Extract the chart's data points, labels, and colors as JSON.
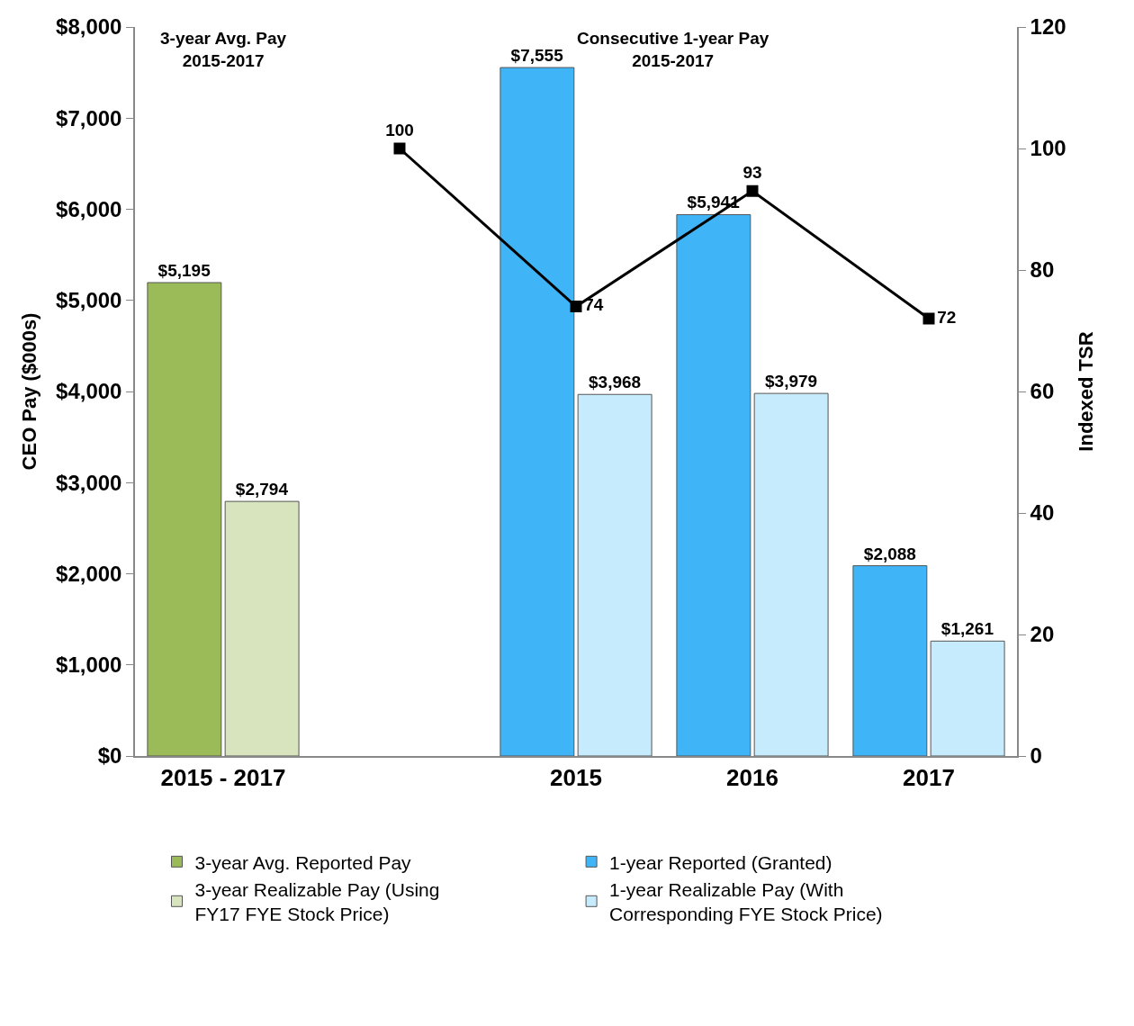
{
  "chart_data": {
    "type": "bar",
    "ylabel": "CEO Pay ($000s)",
    "y2label": "Indexed TSR",
    "categories": [
      "2015 - 2017",
      null,
      "2015",
      "2016",
      "2017"
    ],
    "series": [
      {
        "name": "3-year Avg. Reported Pay",
        "color": "#9bbb59",
        "values": [
          5195,
          null,
          null,
          null,
          null
        ],
        "value_labels": [
          "$5,195",
          null,
          null,
          null,
          null
        ]
      },
      {
        "name": "3-year Realizable Pay (Using FY17 FYE Stock Price)",
        "color": "#d7e4bd",
        "values": [
          2794,
          null,
          null,
          null,
          null
        ],
        "value_labels": [
          "$2,794",
          null,
          null,
          null,
          null
        ]
      },
      {
        "name": "1-year Reported (Granted)",
        "color": "#3fb5f7",
        "values": [
          null,
          null,
          7555,
          5941,
          2088
        ],
        "value_labels": [
          null,
          null,
          "$7,555",
          "$5,941",
          "$2,088"
        ]
      },
      {
        "name": "1-year Realizable Pay (With Corresponding FYE Stock Price)",
        "color": "#c6ebfc",
        "values": [
          null,
          null,
          3968,
          3979,
          1261
        ],
        "value_labels": [
          null,
          null,
          "$3,968",
          "$3,979",
          "$1,261"
        ]
      },
      {
        "type": "line",
        "axis": "y2",
        "color": "#000000",
        "marker": "square",
        "line_style": "solid",
        "data_labels": true,
        "values": [
          null,
          100,
          74,
          93,
          72
        ]
      }
    ],
    "ylim": [
      0,
      8000
    ],
    "yticks": [
      {
        "value": 0,
        "label": "$0"
      },
      {
        "value": 1000,
        "label": "$1,000"
      },
      {
        "value": 2000,
        "label": "$2,000"
      },
      {
        "value": 3000,
        "label": "$3,000"
      },
      {
        "value": 4000,
        "label": "$4,000"
      },
      {
        "value": 5000,
        "label": "$5,000"
      },
      {
        "value": 6000,
        "label": "$6,000"
      },
      {
        "value": 7000,
        "label": "$7,000"
      },
      {
        "value": 8000,
        "label": "$8,000"
      }
    ],
    "y2lim": [
      0,
      120
    ],
    "y2ticks": [
      0,
      20,
      40,
      60,
      80,
      100,
      120
    ],
    "annotations": [
      "3-year Avg. Pay\n2015-2017",
      "Consecutive 1-year Pay\n2015-2017"
    ],
    "legend": "bottom"
  }
}
